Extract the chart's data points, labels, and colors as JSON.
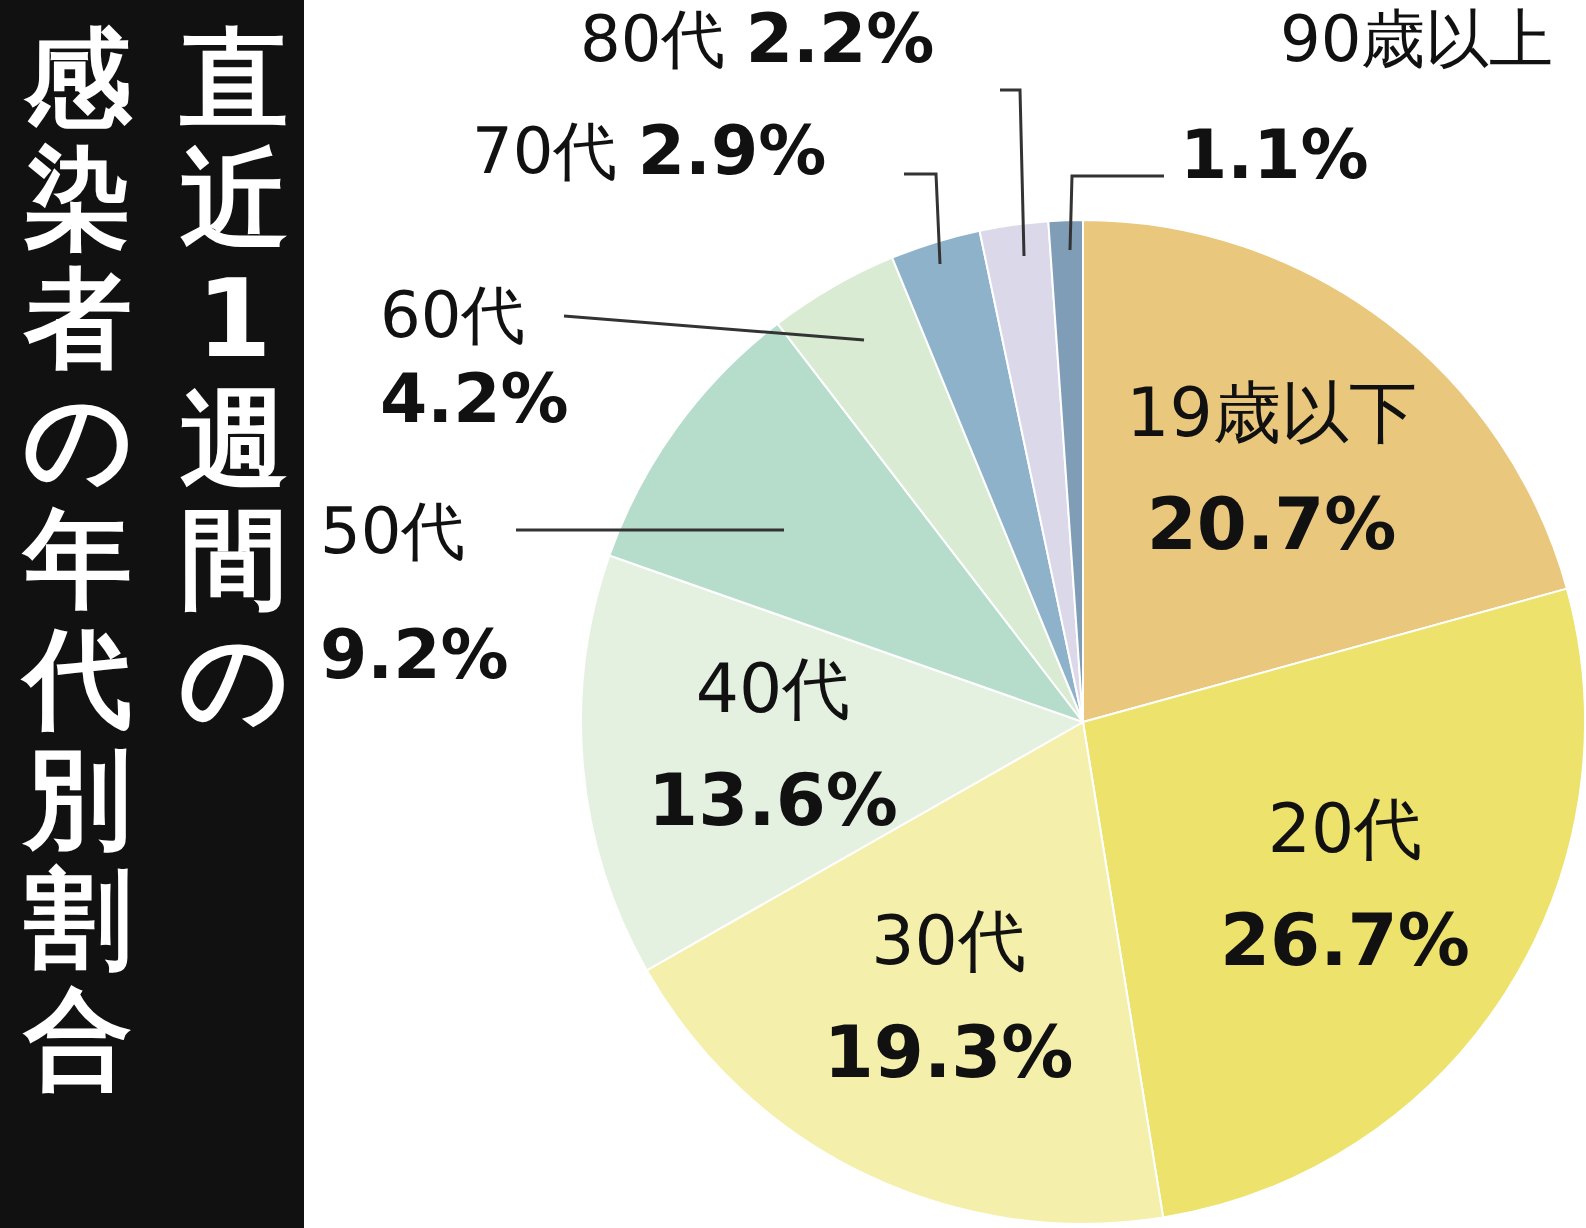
{
  "chart_data": {
    "type": "pie",
    "title": "直近1週間の感染者の年代別割合",
    "categories": [
      "19歳以下",
      "20代",
      "30代",
      "40代",
      "50代",
      "60代",
      "70代",
      "80代",
      "90歳以上"
    ],
    "values": [
      20.7,
      26.7,
      19.3,
      13.6,
      9.2,
      4.2,
      2.9,
      2.2,
      1.1
    ],
    "colors": [
      "#e9c77c",
      "#ede26c",
      "#f4f0ab",
      "#e4f1e1",
      "#b6ddcc",
      "#d9ebd3",
      "#8fb2cb",
      "#dbd8ea",
      "#7f9db6"
    ],
    "value_labels": [
      "20.7%",
      "26.7%",
      "19.3%",
      "13.6%",
      "9.2%",
      "4.2%",
      "2.9%",
      "2.2%",
      "1.1%"
    ],
    "legend": false
  }
}
